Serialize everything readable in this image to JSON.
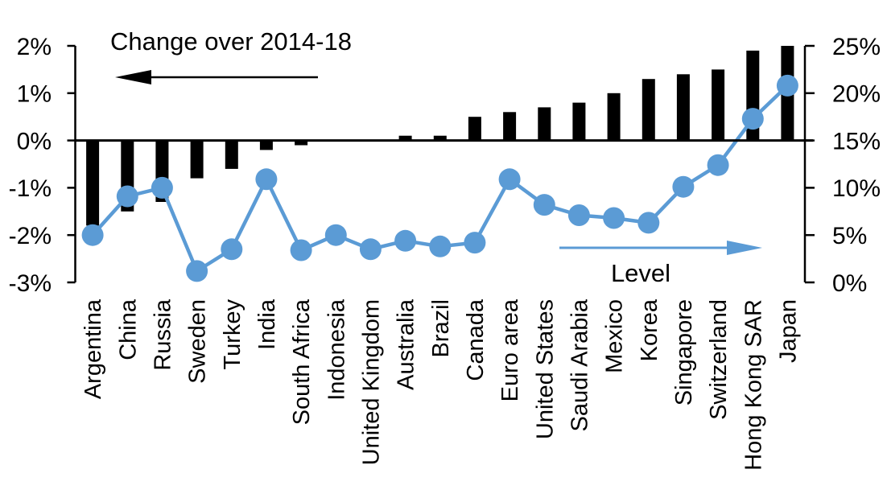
{
  "chart_data": {
    "type": "bar",
    "subtype": "combo-bar-line-dual-axis",
    "title": "Change over 2014-18",
    "categories": [
      "Argentina",
      "China",
      "Russia",
      "Sweden",
      "Turkey",
      "India",
      "South Africa",
      "Indonesia",
      "United Kingdom",
      "Australia",
      "Brazil",
      "Canada",
      "Euro area",
      "United States",
      "Saudi Arabia",
      "Mexico",
      "Korea",
      "Singapore",
      "Switzerland",
      "Hong Kong SAR",
      "Japan"
    ],
    "series": [
      {
        "name": "Change over 2014-18",
        "type": "bar",
        "axis": "left",
        "color": "#000000",
        "values": [
          -1.8,
          -1.5,
          -1.3,
          -0.8,
          -0.6,
          -0.2,
          -0.1,
          0.0,
          0.0,
          0.1,
          0.1,
          0.5,
          0.6,
          0.7,
          0.8,
          1.0,
          1.3,
          1.4,
          1.5,
          1.9,
          2.0
        ]
      },
      {
        "name": "Level",
        "type": "line",
        "axis": "right",
        "color": "#5B9BD5",
        "marker": "circle",
        "values": [
          5.0,
          9.1,
          10.0,
          1.2,
          3.5,
          10.9,
          3.4,
          5.0,
          3.5,
          4.4,
          3.8,
          4.2,
          10.9,
          8.2,
          7.1,
          6.8,
          6.3,
          10.1,
          12.4,
          17.3,
          20.8
        ]
      }
    ],
    "left_axis": {
      "min": -3,
      "max": 2,
      "tick_step": 1,
      "tick_labels": [
        "2%",
        "1%",
        "0%",
        "-1%",
        "-2%",
        "-3%"
      ]
    },
    "right_axis": {
      "min": 0,
      "max": 25,
      "tick_step": 5,
      "tick_labels": [
        "25%",
        "20%",
        "15%",
        "10%",
        "5%",
        "0%"
      ]
    },
    "grid": "off",
    "legend_position": "none",
    "annotations": [
      {
        "text": "Change over 2014-18",
        "arrow": "left",
        "arrow_color": "#000000",
        "refers_to": "left-axis bars"
      },
      {
        "text": "Level",
        "arrow": "right",
        "arrow_color": "#5B9BD5",
        "refers_to": "right-axis line"
      }
    ]
  },
  "colors": {
    "bar": "#000000",
    "line": "#5B9BD5",
    "axis": "#000000",
    "text": "#000000",
    "background": "#FFFFFF"
  }
}
